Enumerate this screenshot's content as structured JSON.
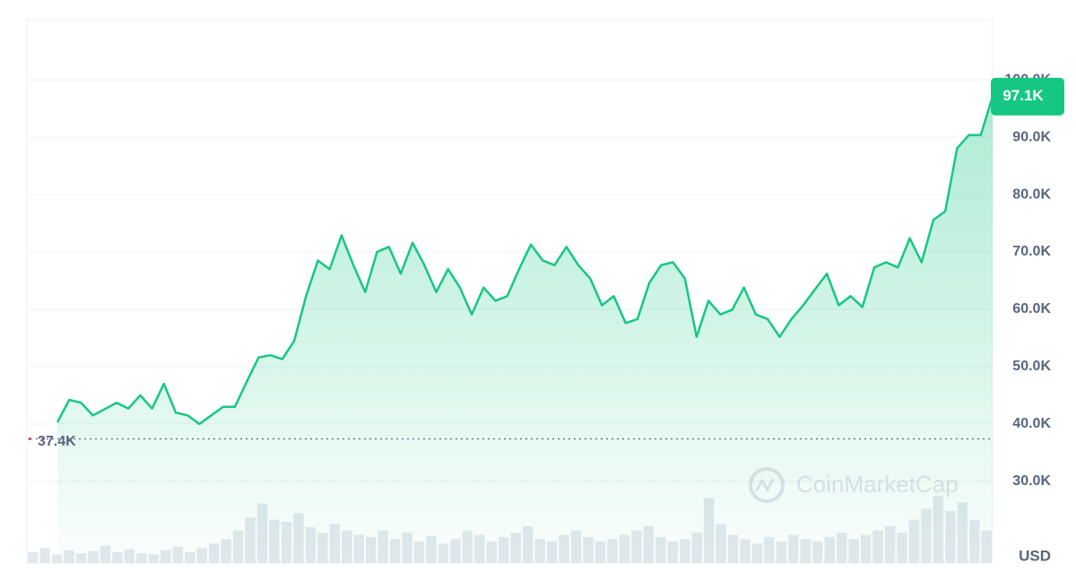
{
  "chart_data": {
    "type": "line",
    "color": "#16c784",
    "values": [
      40300,
      44200,
      43700,
      41500,
      42600,
      43700,
      42700,
      45000,
      42700,
      47000,
      42000,
      41500,
      40000,
      41500,
      43000,
      43000,
      47400,
      51600,
      52000,
      51300,
      54500,
      62300,
      68500,
      67000,
      72900,
      67700,
      63000,
      70000,
      70900,
      66200,
      71600,
      67700,
      63000,
      67000,
      63800,
      59100,
      63800,
      61500,
      62300,
      67000,
      71300,
      68500,
      67700,
      70900,
      67700,
      65400,
      60700,
      62300,
      57600,
      58300,
      64600,
      67700,
      68200,
      65400,
      55200,
      61500,
      59100,
      59900,
      63800,
      59100,
      58300,
      55200,
      58300,
      60700,
      63500,
      66200,
      60700,
      62300,
      60400,
      67300,
      68200,
      67300,
      72400,
      68200,
      75600,
      77100,
      88100,
      90400,
      90400,
      97100
    ],
    "volume": [
      10,
      14,
      8,
      12,
      9,
      11,
      16,
      10,
      13,
      9,
      8,
      12,
      15,
      10,
      14,
      18,
      22,
      30,
      42,
      55,
      40,
      38,
      46,
      33,
      28,
      36,
      30,
      26,
      24,
      30,
      22,
      28,
      20,
      25,
      18,
      22,
      30,
      26,
      20,
      24,
      28,
      34,
      22,
      20,
      26,
      30,
      24,
      20,
      22,
      26,
      30,
      34,
      24,
      20,
      22,
      28,
      60,
      36,
      26,
      22,
      18,
      24,
      20,
      26,
      22,
      20,
      24,
      28,
      22,
      26,
      30,
      34,
      28,
      40,
      50,
      62,
      48,
      56,
      40,
      30
    ],
    "ylim": [
      15750,
      110500
    ],
    "yticks": [
      {
        "value": 30000,
        "label": "30.0K"
      },
      {
        "value": 40000,
        "label": "40.0K"
      },
      {
        "value": 50000,
        "label": "50.0K"
      },
      {
        "value": 60000,
        "label": "60.0K"
      },
      {
        "value": 70000,
        "label": "70.0K"
      },
      {
        "value": 80000,
        "label": "80.0K"
      },
      {
        "value": 90000,
        "label": "90.0K"
      },
      {
        "value": 100000,
        "label": "100.0K"
      }
    ],
    "grid": true,
    "baseline": {
      "value": 37400,
      "label": "37.4K"
    },
    "last_price": {
      "value": 97100,
      "label": "97.1K"
    },
    "currency": "USD",
    "watermark": "CoinMarketCap"
  }
}
